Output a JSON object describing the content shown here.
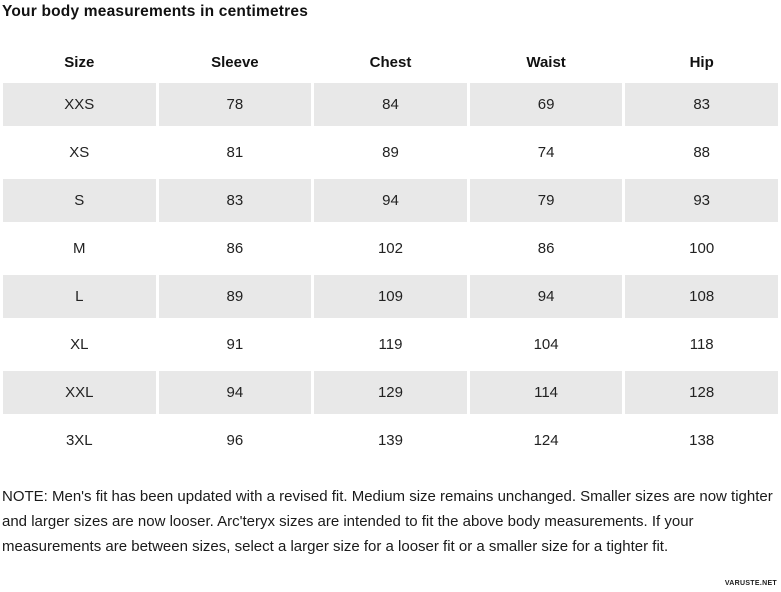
{
  "page": {
    "title": "Your body measurements in centimetres",
    "note": "NOTE: Men's fit has been updated with a revised fit. Medium size remains unchanged. Smaller sizes are now tighter and larger sizes are now looser. Arc'teryx sizes are intended to fit the above body measurements. If your measurements are between sizes, select a larger size for a looser fit or a smaller size for a tighter fit.",
    "watermark": "VARUSTE.NET"
  },
  "table": {
    "headers": [
      "Size",
      "Sleeve",
      "Chest",
      "Waist",
      "Hip"
    ],
    "rows": [
      [
        "XXS",
        "78",
        "84",
        "69",
        "83"
      ],
      [
        "XS",
        "81",
        "89",
        "74",
        "88"
      ],
      [
        "S",
        "83",
        "94",
        "79",
        "93"
      ],
      [
        "M",
        "86",
        "102",
        "86",
        "100"
      ],
      [
        "L",
        "89",
        "109",
        "94",
        "108"
      ],
      [
        "XL",
        "91",
        "119",
        "104",
        "118"
      ],
      [
        "XXL",
        "94",
        "129",
        "114",
        "128"
      ],
      [
        "3XL",
        "96",
        "139",
        "124",
        "138"
      ]
    ]
  },
  "colors": {
    "row_shaded": "#e8e8e8",
    "text": "#1a1a1a",
    "background": "#ffffff"
  },
  "chart_data": {
    "type": "table",
    "title": "Your body measurements in centimetres",
    "columns": [
      "Size",
      "Sleeve",
      "Chest",
      "Waist",
      "Hip"
    ],
    "rows": [
      {
        "size": "XXS",
        "sleeve": 78,
        "chest": 84,
        "waist": 69,
        "hip": 83
      },
      {
        "size": "XS",
        "sleeve": 81,
        "chest": 89,
        "waist": 74,
        "hip": 88
      },
      {
        "size": "S",
        "sleeve": 83,
        "chest": 94,
        "waist": 79,
        "hip": 93
      },
      {
        "size": "M",
        "sleeve": 86,
        "chest": 102,
        "waist": 86,
        "hip": 100
      },
      {
        "size": "L",
        "sleeve": 89,
        "chest": 109,
        "waist": 94,
        "hip": 108
      },
      {
        "size": "XL",
        "sleeve": 91,
        "chest": 119,
        "waist": 104,
        "hip": 118
      },
      {
        "size": "XXL",
        "sleeve": 94,
        "chest": 129,
        "waist": 114,
        "hip": 128
      },
      {
        "size": "3XL",
        "sleeve": 96,
        "chest": 139,
        "waist": 124,
        "hip": 138
      }
    ],
    "units": "cm",
    "layout_hints": {
      "zebra_striping": "odd rows shaded",
      "cell_alignment": "center",
      "note_position": "below table",
      "watermark_position": "bottom-right"
    }
  }
}
